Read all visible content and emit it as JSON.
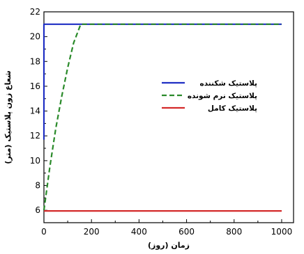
{
  "chart_data": {
    "type": "line",
    "xlabel": "زمان (روز)",
    "ylabel": "شعاع زون پلاستیک (متر)",
    "xlim": [
      0,
      1050
    ],
    "ylim": [
      5,
      22
    ],
    "x_ticks": [
      0,
      200,
      400,
      600,
      800,
      1000
    ],
    "y_ticks": [
      6,
      8,
      10,
      12,
      14,
      16,
      18,
      20,
      22
    ],
    "legend_position": "right-middle",
    "series": [
      {
        "name": "پلاستیک شکننده",
        "color": "#1f2fc4",
        "style": "solid",
        "x": [
          0,
          0,
          0,
          1000
        ],
        "y": [
          11.7,
          20.3,
          21,
          21
        ]
      },
      {
        "name": "پلاستیک نرم شونده",
        "color": "#2a8a2a",
        "style": "dashed",
        "x": [
          0,
          10,
          25,
          50,
          75,
          100,
          125,
          155,
          1000
        ],
        "y": [
          6.0,
          7.4,
          9.5,
          12.6,
          15.2,
          17.5,
          19.5,
          21,
          21
        ]
      },
      {
        "name": "پلاستیک کامل",
        "color": "#d42a2a",
        "style": "solid",
        "x": [
          0,
          1000
        ],
        "y": [
          5.95,
          5.95
        ]
      }
    ]
  }
}
